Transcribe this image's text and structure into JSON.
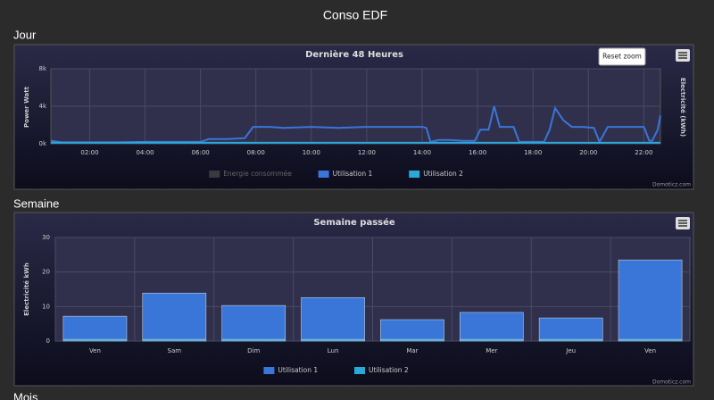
{
  "page": {
    "title": "Conso EDF",
    "sections": [
      "Jour",
      "Semaine",
      "Mois"
    ]
  },
  "chart_data": [
    {
      "type": "line",
      "title": "Dernière 48 Heures",
      "ylabel": "Power Watt",
      "y2label": "Electricité (kWh)",
      "button": "Reset zoom",
      "credits": "Domoticz.com",
      "grid": true,
      "xlim": [
        0.6,
        22.6
      ],
      "xticks": [
        {
          "value": 2,
          "label": "02:00"
        },
        {
          "value": 4,
          "label": "04:00"
        },
        {
          "value": 6,
          "label": "06:00"
        },
        {
          "value": 8,
          "label": "08:00"
        },
        {
          "value": 10,
          "label": "10:00"
        },
        {
          "value": 12,
          "label": "12:00"
        },
        {
          "value": 14,
          "label": "14:00"
        },
        {
          "value": 16,
          "label": "16:00"
        },
        {
          "value": 18,
          "label": "18:00"
        },
        {
          "value": 20,
          "label": "20:00"
        },
        {
          "value": 22,
          "label": "22:00"
        }
      ],
      "ylim": [
        0,
        8000
      ],
      "yticks": [
        {
          "value": 0,
          "label": "0k"
        },
        {
          "value": 4000,
          "label": "4k"
        },
        {
          "value": 8000,
          "label": "8k"
        }
      ],
      "x": [
        0.6,
        1,
        2,
        3,
        4,
        5,
        6,
        6.3,
        7,
        7.6,
        7.9,
        8.5,
        9,
        10,
        11,
        12,
        13,
        14,
        14.15,
        14.3,
        14.6,
        15,
        15.5,
        15.9,
        16.1,
        16.4,
        16.6,
        16.8,
        17,
        17.3,
        17.5,
        18,
        18.4,
        18.6,
        18.8,
        19.1,
        19.4,
        19.8,
        20.2,
        20.4,
        20.7,
        21,
        21.5,
        22,
        22.2,
        22.3,
        22.5,
        22.6
      ],
      "series": [
        {
          "name": "Energie consommée",
          "color": "#555555",
          "visible": false
        },
        {
          "name": "Utilisation 1",
          "color": "#3a75d8",
          "values": [
            300,
            150,
            150,
            150,
            200,
            200,
            200,
            500,
            500,
            600,
            1800,
            1800,
            1700,
            1800,
            1700,
            1800,
            1800,
            1800,
            1700,
            200,
            400,
            400,
            300,
            300,
            1500,
            1500,
            4000,
            1800,
            1800,
            1800,
            200,
            200,
            200,
            1500,
            3800,
            2500,
            1800,
            1800,
            1700,
            200,
            1800,
            1800,
            1800,
            1800,
            300,
            300,
            1500,
            3000
          ]
        },
        {
          "name": "Utilisation 2",
          "color": "#2aa9d9",
          "values": [
            100,
            100,
            100,
            100,
            100,
            100,
            100,
            100,
            100,
            100,
            100,
            100,
            100,
            100,
            100,
            100,
            100,
            100,
            100,
            100,
            100,
            100,
            100,
            100,
            100,
            100,
            100,
            100,
            100,
            100,
            100,
            100,
            100,
            100,
            100,
            100,
            100,
            100,
            100,
            100,
            100,
            100,
            100,
            100,
            100,
            100,
            100,
            100
          ]
        }
      ]
    },
    {
      "type": "bar",
      "title": "Semaine passée",
      "ylabel": "Electricité kWh",
      "credits": "Domoticz.com",
      "grid": true,
      "categories": [
        "Ven",
        "Sam",
        "Dim",
        "Lun",
        "Mar",
        "Mer",
        "Jeu",
        "Ven"
      ],
      "ylim": [
        0,
        30
      ],
      "yticks": [
        0,
        10,
        20,
        30
      ],
      "stacked": true,
      "series": [
        {
          "name": "Utilisation 1",
          "color": "#3a75d8",
          "values": [
            6.7,
            13.4,
            9.8,
            12.1,
            5.7,
            7.8,
            6.2,
            23.0
          ]
        },
        {
          "name": "Utilisation 2",
          "color": "#2aa9d9",
          "values": [
            0.5,
            0.5,
            0.5,
            0.5,
            0.5,
            0.5,
            0.5,
            0.5
          ]
        }
      ]
    }
  ]
}
